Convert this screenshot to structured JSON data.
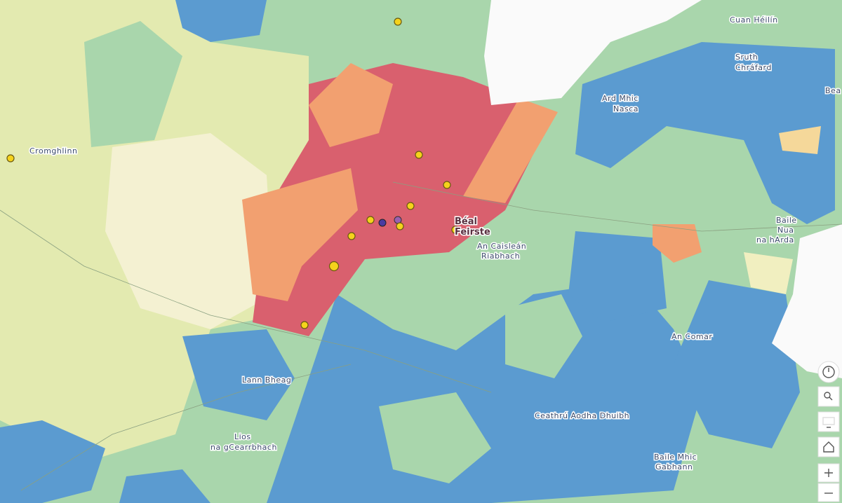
{
  "map": {
    "places": [
      [
        "Cuan Héilín"
      ],
      [
        "Sruth",
        "Chráfard"
      ],
      [
        "Ard Mhic",
        "Nasca"
      ],
      [
        "Cromghlinn"
      ],
      [
        "Béal",
        "Feirste"
      ],
      [
        "An Caisleán",
        "Riabhach"
      ],
      [
        "Baile",
        "Nua",
        "na hArda"
      ],
      [
        "An Comar"
      ],
      [
        "Lann Bheag"
      ],
      [
        "Lios",
        "na gCearrbhach"
      ],
      [
        "Ceathrú Aodha Dhuibh"
      ],
      [
        "Baile Mhic",
        "Gabhann"
      ],
      [
        "Bea"
      ]
    ]
  }
}
